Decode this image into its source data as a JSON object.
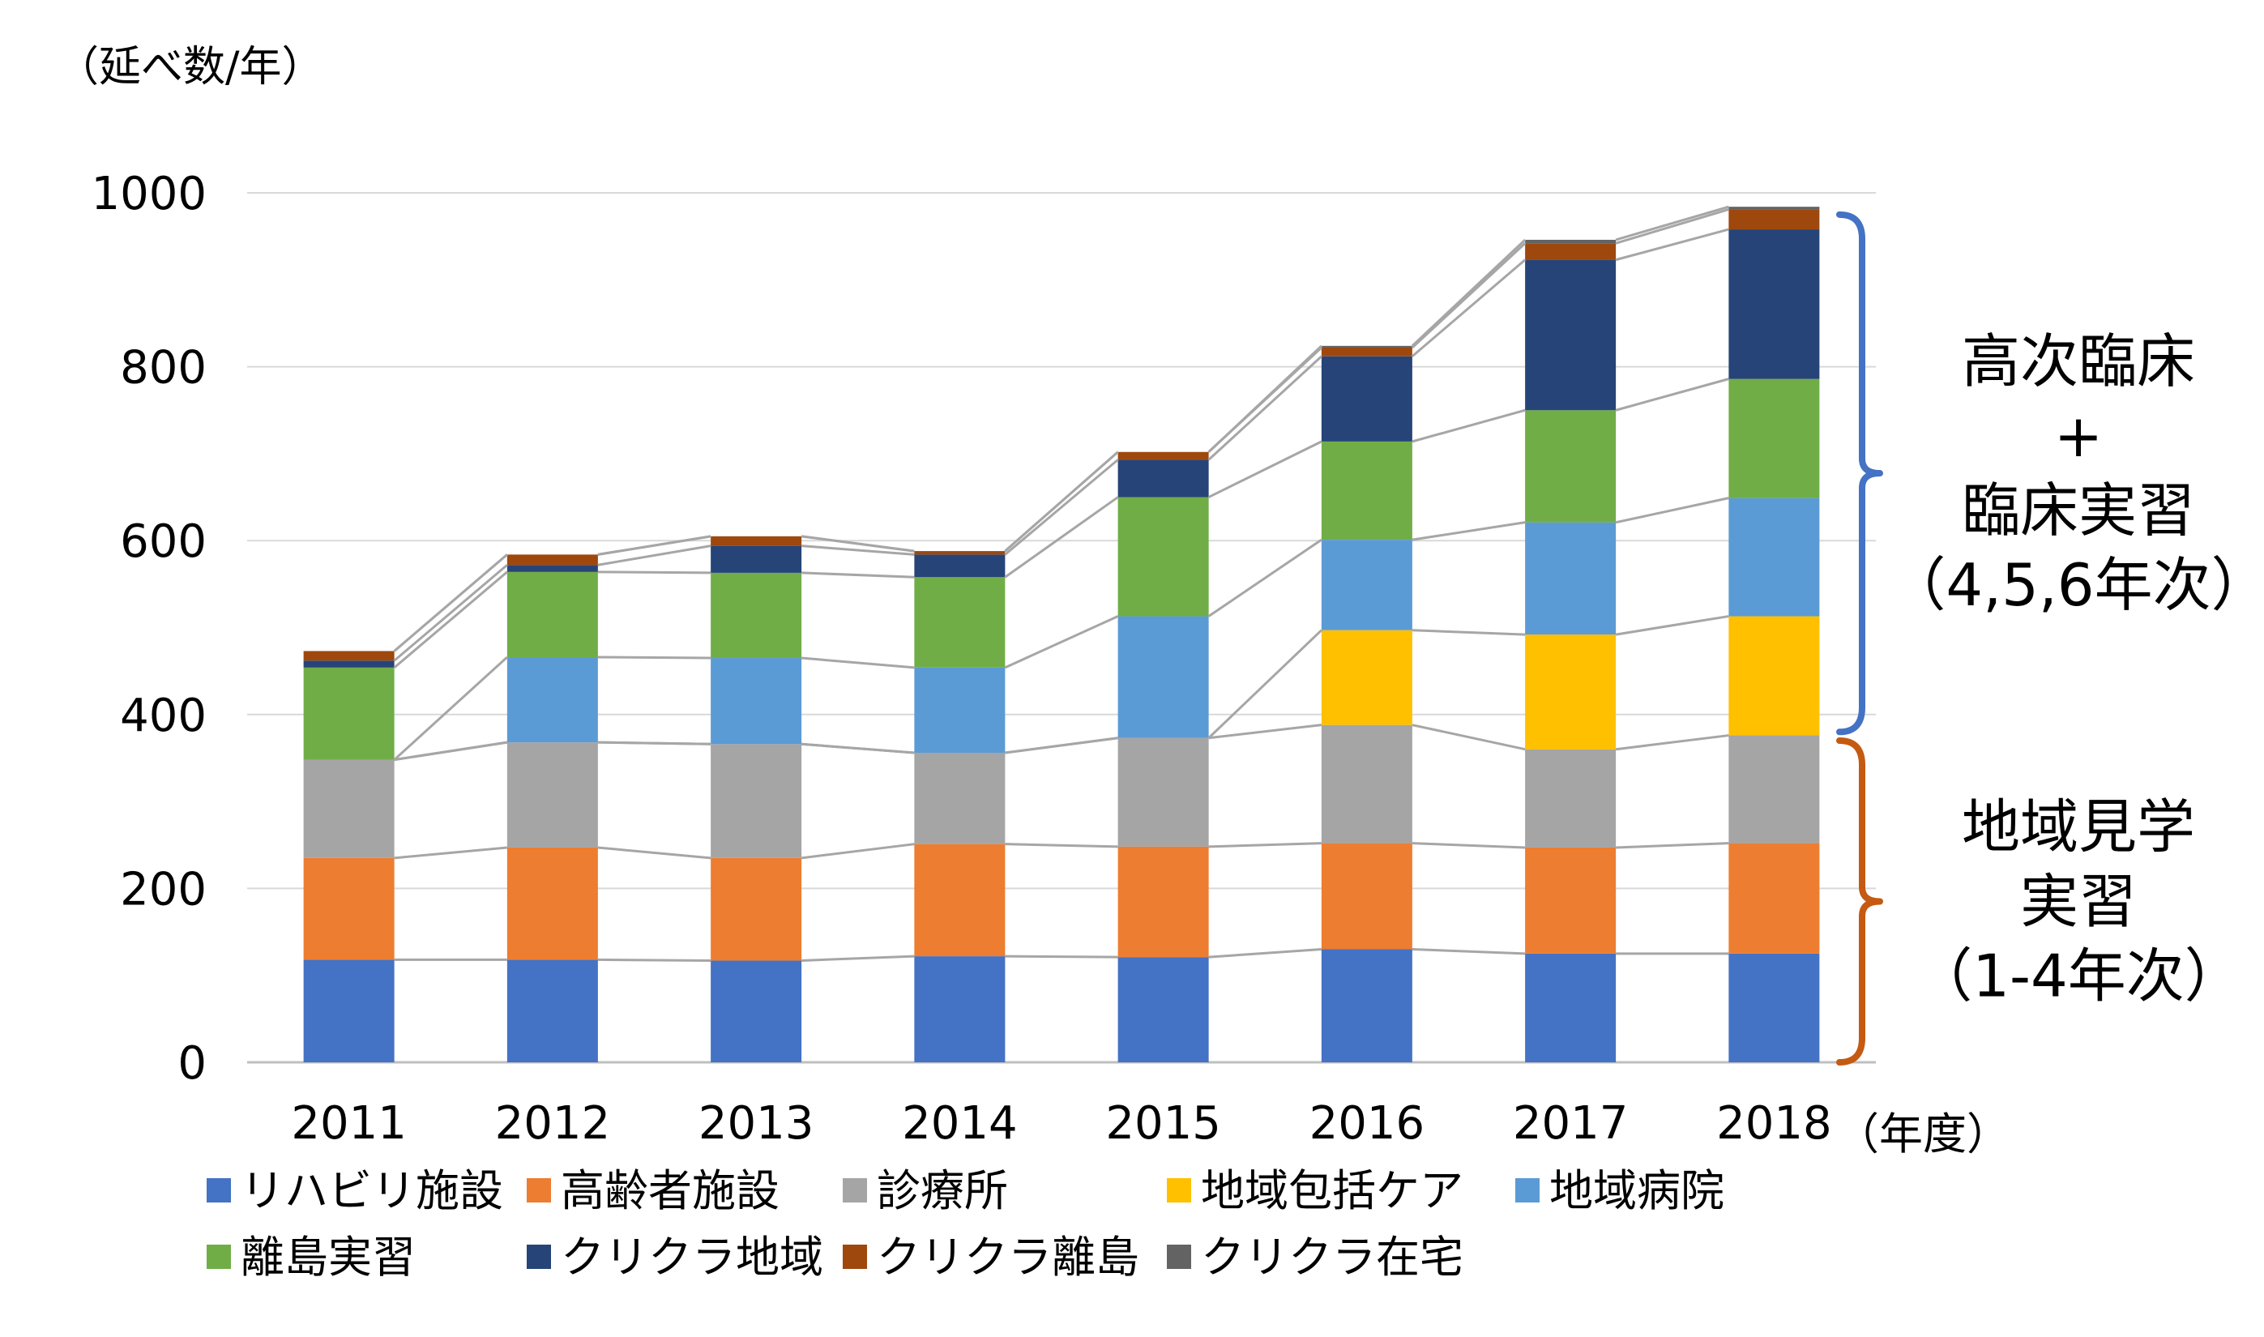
{
  "chart_data": {
    "type": "bar",
    "stacked": true,
    "ylabel": "（延べ数/年）",
    "xlabel": "（年度）",
    "ylim": [
      0,
      1000
    ],
    "yticks": [
      0,
      200,
      400,
      600,
      800,
      1000
    ],
    "categories": [
      "2011",
      "2012",
      "2013",
      "2014",
      "2015",
      "2016",
      "2017",
      "2018"
    ],
    "series": [
      {
        "name": "リハビリ施設",
        "color": "#4472C4",
        "values": [
          118,
          118,
          117,
          122,
          121,
          130,
          125,
          125
        ]
      },
      {
        "name": "高齢者施設",
        "color": "#ED7D31",
        "values": [
          117,
          129,
          118,
          129,
          127,
          122,
          122,
          127
        ]
      },
      {
        "name": "診療所",
        "color": "#A5A5A5",
        "values": [
          113,
          121,
          131,
          105,
          125,
          136,
          113,
          124
        ]
      },
      {
        "name": "地域包括ケア",
        "color": "#FFC000",
        "values": [
          0,
          0,
          0,
          0,
          0,
          109,
          132,
          137
        ]
      },
      {
        "name": "地域病院",
        "color": "#5B9BD5",
        "values": [
          0,
          98,
          99,
          98,
          140,
          104,
          129,
          136
        ]
      },
      {
        "name": "離島実習",
        "color": "#70AD47",
        "values": [
          106,
          98,
          98,
          104,
          137,
          113,
          129,
          137
        ]
      },
      {
        "name": "クリクラ地域",
        "color": "#264478",
        "values": [
          8,
          8,
          31,
          26,
          43,
          98,
          173,
          172
        ]
      },
      {
        "name": "クリクラ離島",
        "color": "#9E480E",
        "values": [
          11,
          12,
          11,
          4,
          9,
          10,
          19,
          23
        ]
      },
      {
        "name": "クリクラ在宅",
        "color": "#636363",
        "values": [
          0,
          0,
          0,
          0,
          0,
          2,
          4,
          3
        ]
      }
    ],
    "grid": true,
    "legend_position": "bottom",
    "brackets": [
      {
        "color": "#4472C4",
        "range": [
          380,
          975
        ],
        "lines": [
          "高次臨床",
          "+",
          "臨床実習",
          "（4,5,6年次）"
        ]
      },
      {
        "color": "#C55A11",
        "range": [
          0,
          370
        ],
        "lines": [
          "地域見学",
          "実習",
          "（1-4年次）"
        ]
      }
    ]
  }
}
